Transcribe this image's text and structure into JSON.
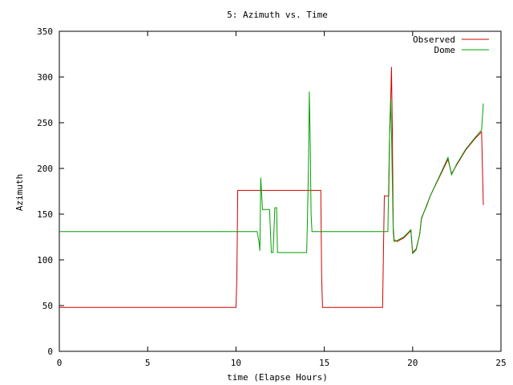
{
  "chart_data": {
    "type": "line",
    "title": "5: Azimuth vs. Time",
    "xlabel": "time (Elapse Hours)",
    "ylabel": "Azimuth",
    "xlim": [
      0,
      25
    ],
    "ylim": [
      0,
      350
    ],
    "xticks": [
      "0",
      "5",
      "10",
      "15",
      "20",
      "25"
    ],
    "yticks": [
      "0",
      "50",
      "100",
      "150",
      "200",
      "250",
      "300",
      "350"
    ],
    "grid": false,
    "legend_position": "top-right",
    "series": [
      {
        "name": "Observed",
        "color": "#d00000",
        "points": [
          [
            0,
            48
          ],
          [
            10.0,
            48
          ],
          [
            10.05,
            80
          ],
          [
            10.1,
            176
          ],
          [
            14.8,
            176
          ],
          [
            14.85,
            80
          ],
          [
            14.9,
            48
          ],
          [
            18.3,
            48
          ],
          [
            18.35,
            110
          ],
          [
            18.4,
            170
          ],
          [
            18.65,
            170
          ],
          [
            18.7,
            240
          ],
          [
            18.75,
            270
          ],
          [
            18.8,
            311
          ],
          [
            18.85,
            240
          ],
          [
            18.9,
            135
          ],
          [
            18.95,
            122
          ],
          [
            19.1,
            120
          ],
          [
            19.5,
            124
          ],
          [
            19.9,
            132
          ],
          [
            20.0,
            108
          ],
          [
            20.2,
            112
          ],
          [
            20.4,
            128
          ],
          [
            20.5,
            145
          ],
          [
            20.8,
            160
          ],
          [
            21.0,
            170
          ],
          [
            21.5,
            190
          ],
          [
            22.0,
            210
          ],
          [
            22.2,
            194
          ],
          [
            22.5,
            204
          ],
          [
            23.0,
            220
          ],
          [
            23.5,
            232
          ],
          [
            23.9,
            240
          ],
          [
            24.0,
            160
          ]
        ]
      },
      {
        "name": "Dome",
        "color": "#00a000",
        "points": [
          [
            0,
            131
          ],
          [
            11.2,
            131
          ],
          [
            11.3,
            120
          ],
          [
            11.35,
            110
          ],
          [
            11.4,
            190
          ],
          [
            11.5,
            155
          ],
          [
            11.9,
            155
          ],
          [
            12.0,
            108
          ],
          [
            12.1,
            108
          ],
          [
            12.2,
            157
          ],
          [
            12.3,
            157
          ],
          [
            12.35,
            108
          ],
          [
            14.0,
            108
          ],
          [
            14.05,
            150
          ],
          [
            14.1,
            200
          ],
          [
            14.15,
            284
          ],
          [
            14.2,
            230
          ],
          [
            14.25,
            150
          ],
          [
            14.3,
            131
          ],
          [
            18.5,
            131
          ],
          [
            18.6,
            131
          ],
          [
            18.7,
            240
          ],
          [
            18.75,
            276
          ],
          [
            18.8,
            240
          ],
          [
            18.9,
            130
          ],
          [
            18.95,
            120
          ],
          [
            19.1,
            121
          ],
          [
            19.5,
            125
          ],
          [
            19.9,
            133
          ],
          [
            20.0,
            107
          ],
          [
            20.2,
            111
          ],
          [
            20.4,
            128
          ],
          [
            20.5,
            146
          ],
          [
            20.8,
            159
          ],
          [
            21.0,
            170
          ],
          [
            21.5,
            191
          ],
          [
            22.0,
            212
          ],
          [
            22.2,
            193
          ],
          [
            22.5,
            205
          ],
          [
            23.0,
            221
          ],
          [
            23.5,
            233
          ],
          [
            23.9,
            242
          ],
          [
            24.0,
            271
          ]
        ]
      }
    ]
  }
}
